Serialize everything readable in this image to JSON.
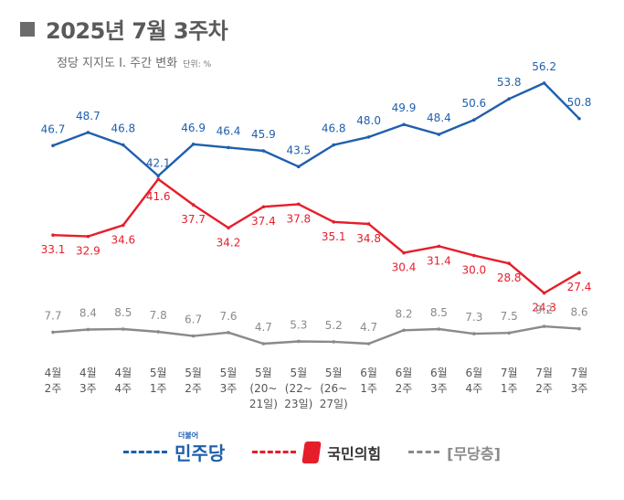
{
  "title": "2025년 7월 3주차",
  "subtitle": "정당 지지도 Ⅰ. 주간 변화",
  "unit": "단위: %",
  "colors": {
    "minjoo": "#1f5fad",
    "ppp": "#e61e2b",
    "none": "#8a8a8a"
  },
  "legend": {
    "minjoo_prefix": "더불어",
    "minjoo": "민주당",
    "ppp": "국민의힘",
    "none": "[무당층]"
  },
  "chart_data": {
    "type": "line",
    "categories": [
      [
        "4월",
        "2주"
      ],
      [
        "4월",
        "3주"
      ],
      [
        "4월",
        "4주"
      ],
      [
        "5월",
        "1주"
      ],
      [
        "5월",
        "2주"
      ],
      [
        "5월",
        "3주"
      ],
      [
        "5월",
        "(20~",
        "21일)"
      ],
      [
        "5월",
        "(22~",
        "23일)"
      ],
      [
        "5월",
        "(26~",
        "27일)"
      ],
      [
        "6월",
        "1주"
      ],
      [
        "6월",
        "2주"
      ],
      [
        "6월",
        "3주"
      ],
      [
        "6월",
        "4주"
      ],
      [
        "7월",
        "1주"
      ],
      [
        "7월",
        "2주"
      ],
      [
        "7월",
        "3주"
      ]
    ],
    "series": [
      {
        "name": "민주당",
        "key": "minjoo",
        "values": [
          46.7,
          48.7,
          46.8,
          42.1,
          46.9,
          46.4,
          45.9,
          43.5,
          46.8,
          48.0,
          49.9,
          48.4,
          50.6,
          53.8,
          56.2,
          50.8
        ],
        "labels": [
          "46.7",
          "48.7",
          "46.8",
          "42.1",
          "46.9",
          "46.4",
          "45.9",
          "43.5",
          "46.8",
          "48.0",
          "49.9",
          "48.4",
          "50.6",
          "53.8",
          "56.2",
          "50.8"
        ]
      },
      {
        "name": "국민의힘",
        "key": "ppp",
        "values": [
          33.1,
          32.9,
          34.6,
          41.6,
          37.7,
          34.2,
          37.4,
          37.8,
          35.1,
          34.8,
          30.4,
          31.4,
          30.0,
          28.8,
          24.3,
          27.4
        ],
        "labels": [
          "33.1",
          "32.9",
          "34.6",
          "41.6",
          "37.7",
          "34.2",
          "37.4",
          "37.8",
          "35.1",
          "34.8",
          "30.4",
          "31.4",
          "30.0",
          "28.8",
          "24.3",
          "27.4"
        ]
      },
      {
        "name": "무당층",
        "key": "none",
        "values": [
          7.7,
          8.4,
          8.5,
          7.8,
          6.7,
          7.6,
          4.7,
          5.3,
          5.2,
          4.7,
          8.2,
          8.5,
          7.3,
          7.5,
          9.2,
          8.6
        ],
        "labels": [
          "7.7",
          "8.4",
          "8.5",
          "7.8",
          "6.7",
          "7.6",
          "4.7",
          "5.3",
          "5.2",
          "4.7",
          "8.2",
          "8.5",
          "7.3",
          "7.5",
          "9.2",
          "8.6"
        ]
      }
    ],
    "grid": false,
    "legend_position": "bottom"
  }
}
